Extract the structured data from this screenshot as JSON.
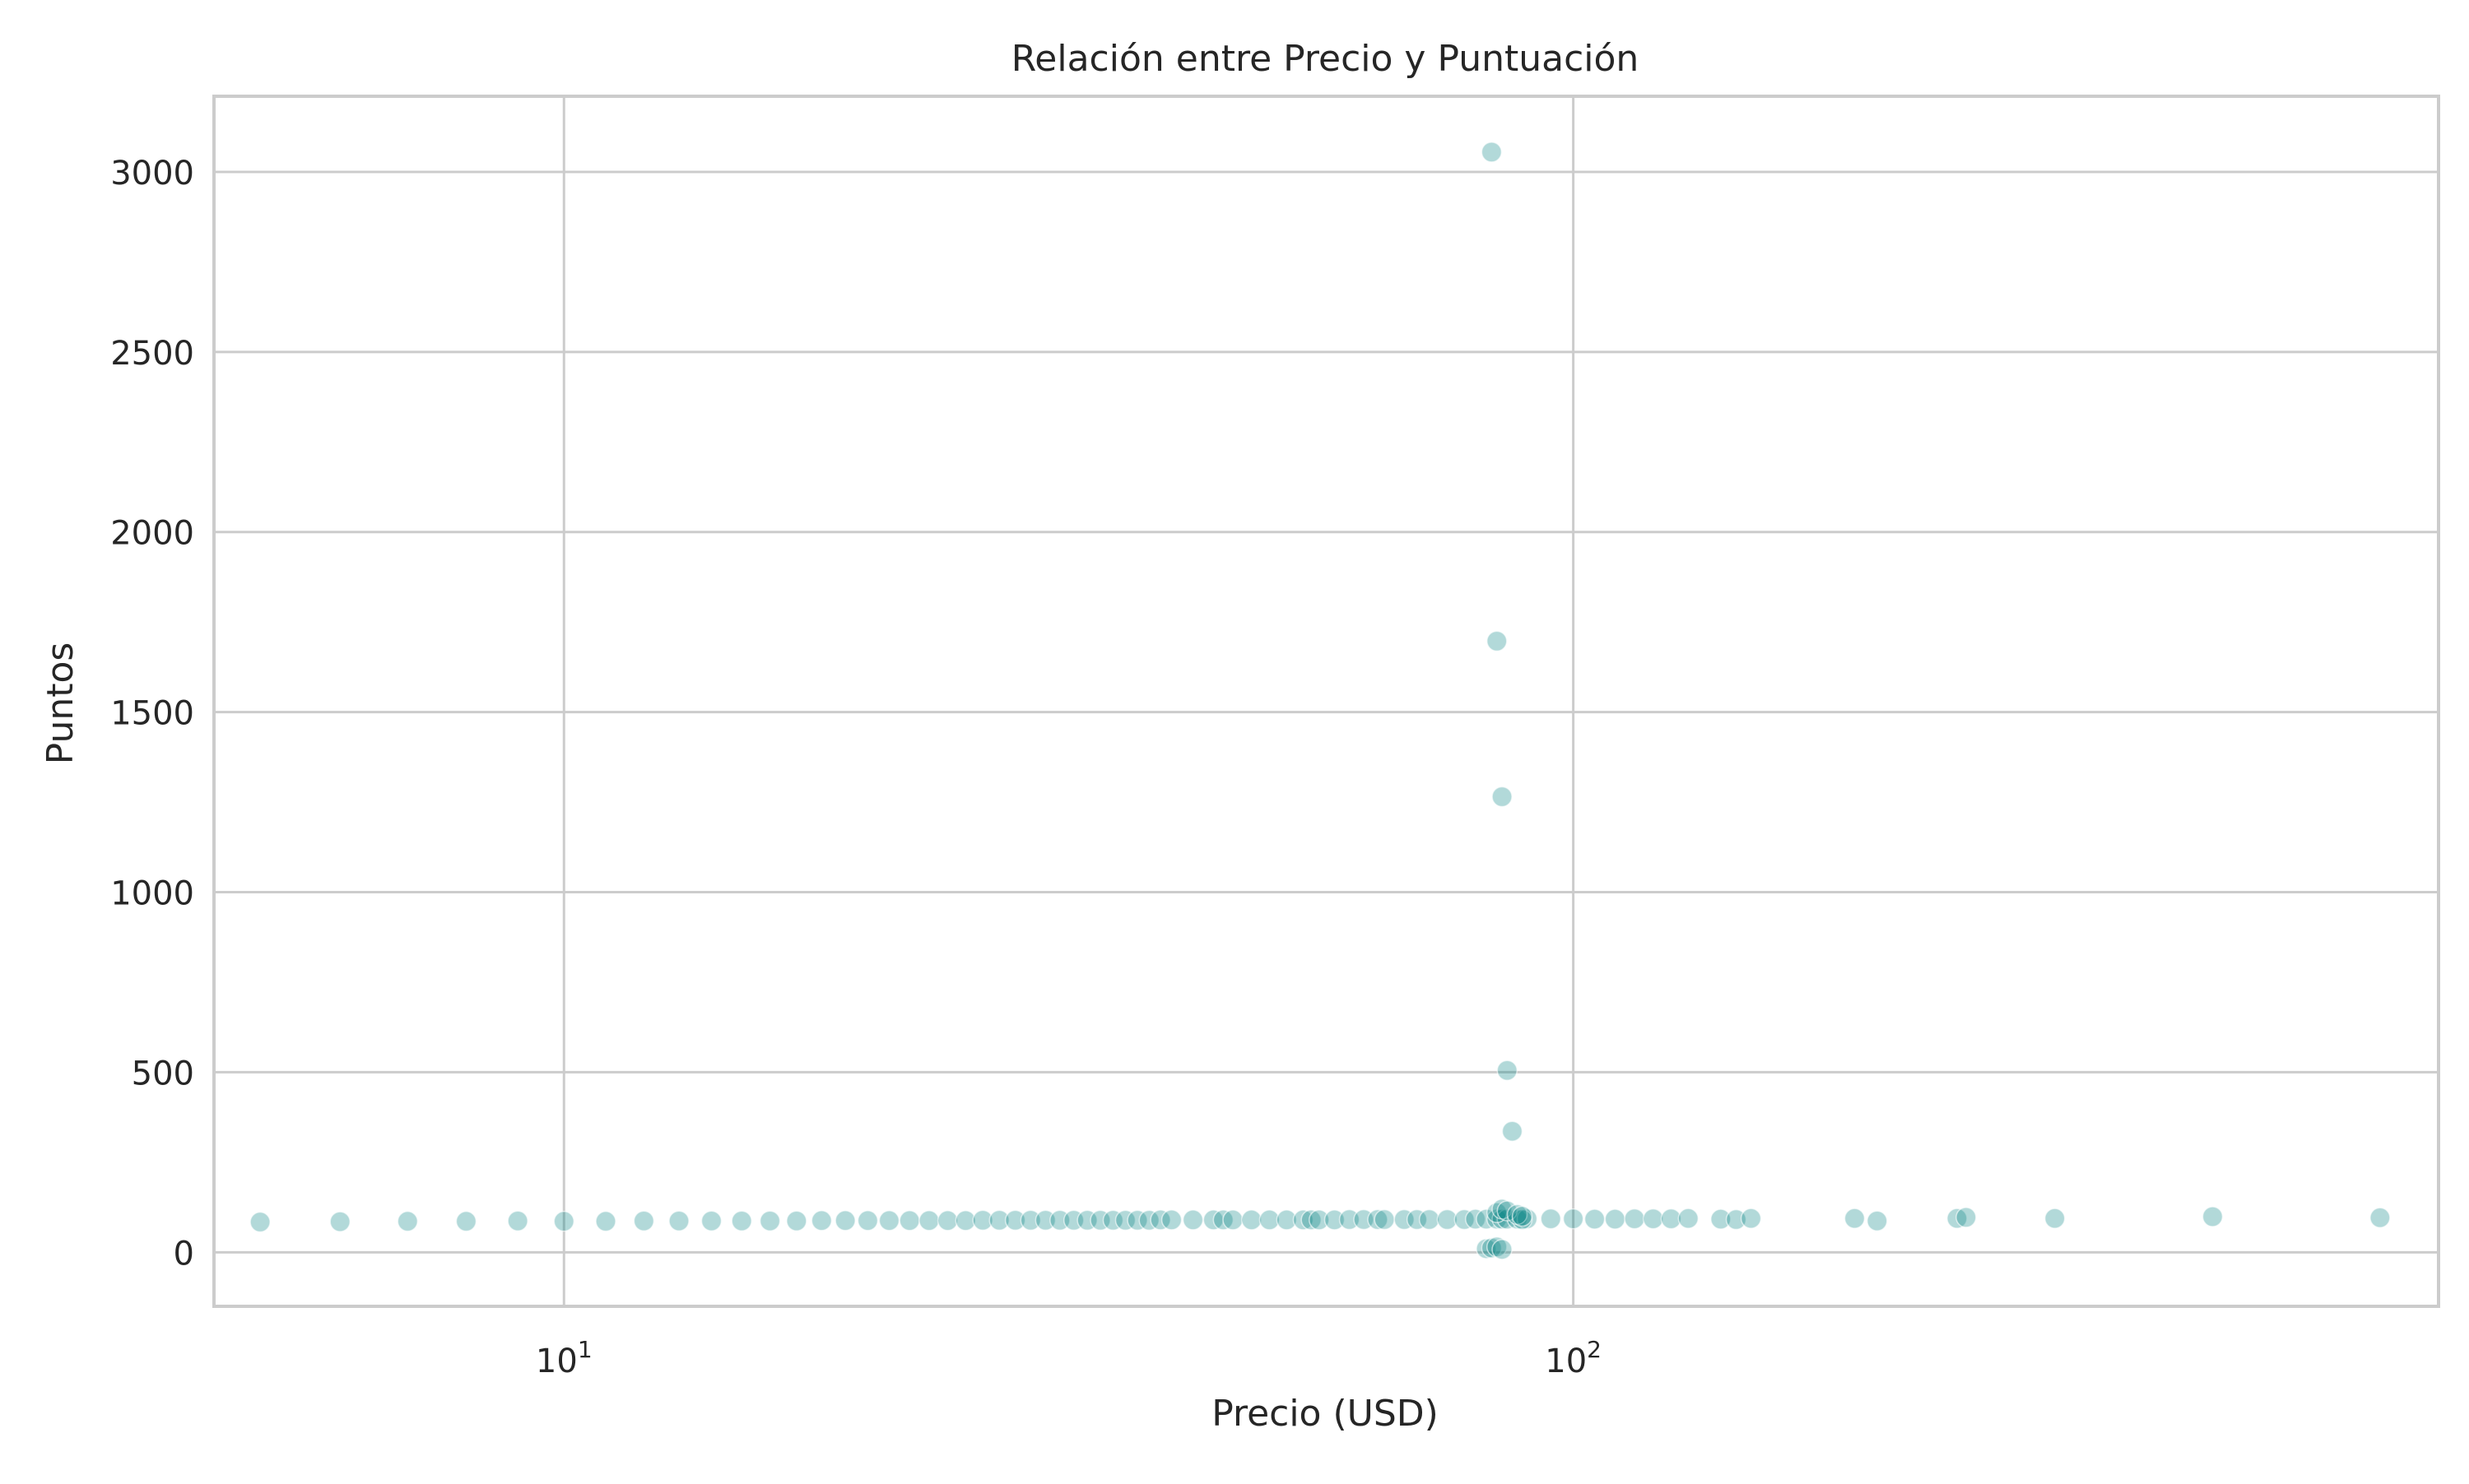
{
  "chart_data": {
    "type": "scatter",
    "title": "Relación entre Precio y Puntuación",
    "xlabel": "Precio (USD)",
    "ylabel": "Puntos",
    "xscale": "log",
    "xlim": [
      4.5,
      720
    ],
    "ylim": [
      -150,
      3210
    ],
    "grid": true,
    "legend": "none",
    "x_ticks": [
      {
        "value": 10,
        "base": "10",
        "exp": "1"
      },
      {
        "value": 100,
        "base": "10",
        "exp": "2"
      }
    ],
    "y_ticks": [
      {
        "value": 0,
        "label": "0"
      },
      {
        "value": 500,
        "label": "500"
      },
      {
        "value": 1000,
        "label": "1000"
      },
      {
        "value": 1500,
        "label": "1500"
      },
      {
        "value": 2000,
        "label": "2000"
      },
      {
        "value": 2500,
        "label": "2500"
      },
      {
        "value": 3000,
        "label": "3000"
      }
    ],
    "colors": {
      "marker": "#008080",
      "grid": "#cccccc",
      "spine": "#cccccc",
      "background": "#ffffff",
      "text": "#262626"
    },
    "series": [
      {
        "x": [
          5,
          6,
          7,
          8,
          9,
          10,
          11,
          12,
          13,
          14,
          15,
          16,
          17,
          18,
          19,
          20,
          21,
          22,
          23,
          24,
          25,
          26,
          27,
          28,
          29,
          30,
          31,
          32,
          33,
          34,
          35,
          36,
          37,
          38,
          39,
          40,
          42,
          44,
          45,
          46,
          48,
          50,
          52,
          54,
          55,
          56,
          58,
          60,
          62,
          64,
          65,
          68,
          70,
          72,
          75,
          78,
          80,
          82,
          84,
          85,
          86,
          88,
          90,
          95,
          100,
          105,
          110,
          115,
          120,
          125,
          130,
          140,
          145,
          150,
          190,
          200,
          240,
          245,
          300,
          430,
          630,
          83,
          84,
          85,
          86,
          87,
          89,
          84,
          85,
          86,
          88,
          82,
          83,
          84,
          85,
          89
        ],
        "y": [
          84,
          85,
          86,
          86,
          87,
          86,
          86,
          87,
          87,
          87,
          87,
          87,
          87,
          88,
          88,
          88,
          88,
          88,
          88,
          88,
          88,
          89,
          89,
          89,
          89,
          89,
          89,
          89,
          89,
          89,
          89,
          89,
          89,
          89,
          90,
          90,
          90,
          90,
          90,
          90,
          90,
          90,
          90,
          90,
          90,
          90,
          90,
          91,
          91,
          91,
          91,
          91,
          91,
          91,
          91,
          91,
          92,
          92,
          92,
          92,
          92,
          92,
          93,
          93,
          93,
          92,
          92,
          93,
          93,
          93,
          94,
          92,
          91,
          94,
          94,
          87,
          94,
          97,
          94,
          99,
          96,
          3055,
          1697,
          1265,
          505,
          336,
          91,
          110,
          120,
          115,
          105,
          10,
          12,
          15,
          8,
          100
        ]
      }
    ]
  }
}
